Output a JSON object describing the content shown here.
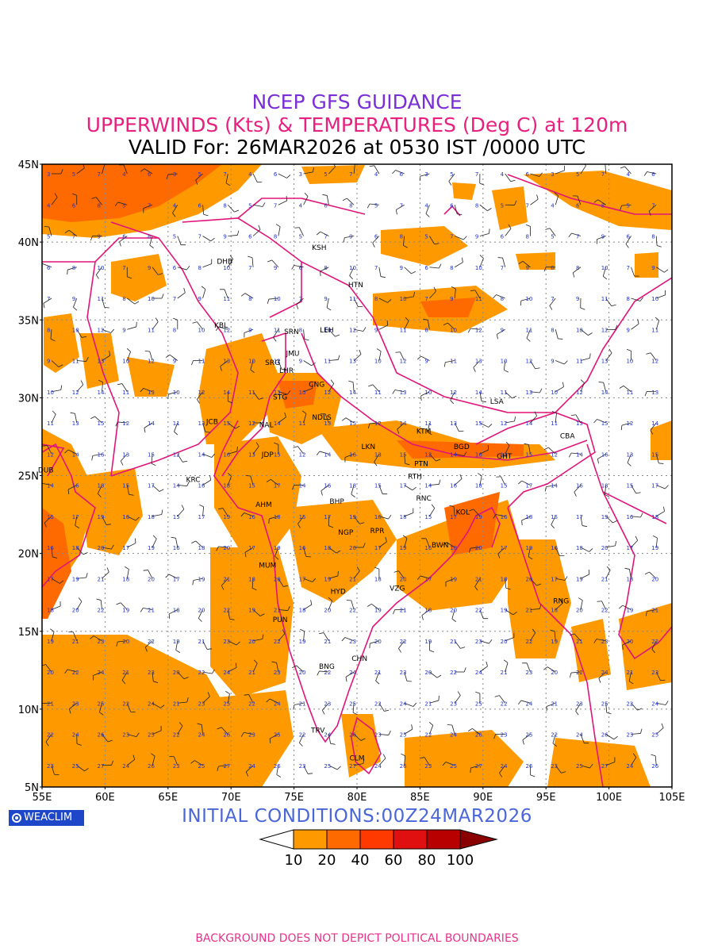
{
  "header": {
    "line1": "NCEP GFS GUIDANCE",
    "line2": "UPPERWINDS (Kts) & TEMPERATURES (Deg C) at 120m",
    "line3": "VALID For: 26MAR2026 at 0530 IST /0000 UTC",
    "line1_color": "#7b2fd6",
    "line2_color": "#e8207e",
    "line3_color": "#000000"
  },
  "map": {
    "lat_labels": [
      "45N",
      "40N",
      "35N",
      "30N",
      "25N",
      "20N",
      "15N",
      "10N",
      "5N"
    ],
    "lon_labels": [
      "55E",
      "60E",
      "65E",
      "70E",
      "75E",
      "80E",
      "85E",
      "90E",
      "95E",
      "100E",
      "105E"
    ],
    "lat_range": [
      5,
      45
    ],
    "lon_range": [
      55,
      105
    ],
    "grid": "dotted",
    "boundary_color": "#e0157a",
    "stations": [
      {
        "code": "KSH",
        "lon": 77.0,
        "lat": 39.5
      },
      {
        "code": "DHB",
        "lon": 69.5,
        "lat": 38.6
      },
      {
        "code": "HTN",
        "lon": 79.9,
        "lat": 37.1
      },
      {
        "code": "KBL",
        "lon": 69.2,
        "lat": 34.5
      },
      {
        "code": "SRN",
        "lon": 74.8,
        "lat": 34.1
      },
      {
        "code": "LEH",
        "lon": 77.6,
        "lat": 34.2
      },
      {
        "code": "JMU",
        "lon": 74.9,
        "lat": 32.7
      },
      {
        "code": "SRG",
        "lon": 73.3,
        "lat": 32.1
      },
      {
        "code": "LHR",
        "lon": 74.4,
        "lat": 31.6
      },
      {
        "code": "CNG",
        "lon": 76.8,
        "lat": 30.7
      },
      {
        "code": "STG",
        "lon": 73.9,
        "lat": 29.9
      },
      {
        "code": "LSA",
        "lon": 91.1,
        "lat": 29.6
      },
      {
        "code": "JCB",
        "lon": 68.5,
        "lat": 28.3
      },
      {
        "code": "NDLS",
        "lon": 77.2,
        "lat": 28.6
      },
      {
        "code": "NAL",
        "lon": 72.8,
        "lat": 28.1
      },
      {
        "code": "KTM",
        "lon": 85.3,
        "lat": 27.7
      },
      {
        "code": "CBA",
        "lon": 96.7,
        "lat": 27.4
      },
      {
        "code": "BGD",
        "lon": 88.3,
        "lat": 26.7
      },
      {
        "code": "GHT",
        "lon": 91.7,
        "lat": 26.1
      },
      {
        "code": "LKN",
        "lon": 80.9,
        "lat": 26.7
      },
      {
        "code": "JDP",
        "lon": 72.9,
        "lat": 26.2
      },
      {
        "code": "DUB",
        "lon": 55.3,
        "lat": 25.2
      },
      {
        "code": "PTN",
        "lon": 85.1,
        "lat": 25.6
      },
      {
        "code": "KRC",
        "lon": 67.0,
        "lat": 24.6
      },
      {
        "code": "RTH",
        "lon": 84.6,
        "lat": 24.8
      },
      {
        "code": "BHP",
        "lon": 78.4,
        "lat": 23.2
      },
      {
        "code": "AHM",
        "lon": 72.6,
        "lat": 23.0
      },
      {
        "code": "RNC",
        "lon": 85.3,
        "lat": 23.4
      },
      {
        "code": "KOL",
        "lon": 88.4,
        "lat": 22.5
      },
      {
        "code": "NGP",
        "lon": 79.1,
        "lat": 21.2
      },
      {
        "code": "RPR",
        "lon": 81.6,
        "lat": 21.3
      },
      {
        "code": "BWN",
        "lon": 86.6,
        "lat": 20.4
      },
      {
        "code": "MUM",
        "lon": 72.9,
        "lat": 19.1
      },
      {
        "code": "HYD",
        "lon": 78.5,
        "lat": 17.4
      },
      {
        "code": "VZG",
        "lon": 83.2,
        "lat": 17.6
      },
      {
        "code": "RNG",
        "lon": 96.2,
        "lat": 16.8
      },
      {
        "code": "PUN",
        "lon": 73.9,
        "lat": 15.6
      },
      {
        "code": "CHN",
        "lon": 80.2,
        "lat": 13.1
      },
      {
        "code": "BNG",
        "lon": 77.6,
        "lat": 12.6
      },
      {
        "code": "TRV",
        "lon": 76.9,
        "lat": 8.5
      },
      {
        "code": "CLM",
        "lon": 80.0,
        "lat": 6.7
      }
    ]
  },
  "colorbar": {
    "labels": [
      "10",
      "20",
      "40",
      "60",
      "80",
      "100"
    ],
    "colors": [
      "#ff9900",
      "#ff6a00",
      "#ff3a00",
      "#e01010",
      "#b80000",
      "#8a0000"
    ]
  },
  "brand": {
    "label": "WEACLIM",
    "icon": "weaclim-logo-icon"
  },
  "initial_conditions": "INITIAL CONDITIONS:00Z24MAR2026",
  "footer": "BACKGROUND DOES NOT DEPICT POLITICAL BOUNDARIES"
}
